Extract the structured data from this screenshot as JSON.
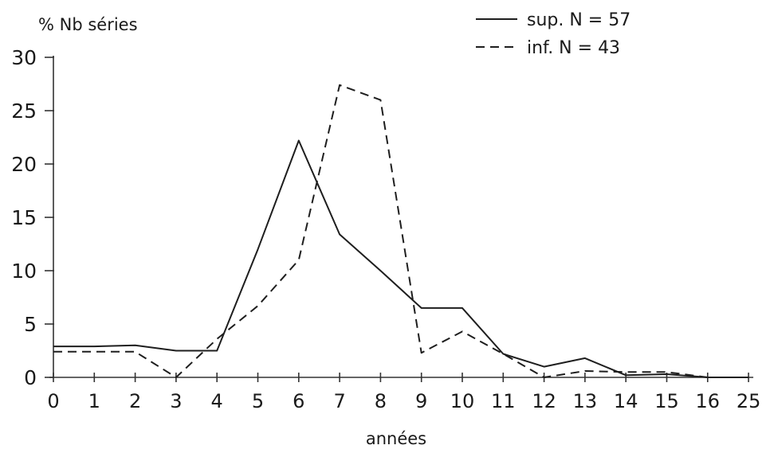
{
  "chart_data": {
    "type": "line",
    "title": "",
    "ylabel": "% Nb séries",
    "xlabel": "années",
    "categories": [
      "0",
      "1",
      "2",
      "3",
      "4",
      "5",
      "6",
      "7",
      "8",
      "9",
      "10",
      "11",
      "12",
      "13",
      "14",
      "15",
      "16",
      "25"
    ],
    "ylim": [
      0,
      30
    ],
    "yticks": [
      0,
      5,
      10,
      15,
      20,
      25,
      30
    ],
    "grid": false,
    "legend_position": "top-right",
    "series": [
      {
        "name": "sup. N = 57",
        "style": "solid",
        "values": [
          2.9,
          2.9,
          3.0,
          2.5,
          2.5,
          12.0,
          22.2,
          13.4,
          10.0,
          6.5,
          6.5,
          2.2,
          1.0,
          1.8,
          0.2,
          0.3,
          0.0,
          0.0
        ]
      },
      {
        "name": "inf. N = 43",
        "style": "dashed",
        "values": [
          2.4,
          2.4,
          2.4,
          0.0,
          3.6,
          6.7,
          11.0,
          27.4,
          26.0,
          2.3,
          4.3,
          2.2,
          0.0,
          0.6,
          0.5,
          0.5,
          0.0,
          0.0
        ]
      }
    ]
  },
  "colors": {
    "ink": "#1e1e1e",
    "background": "#ffffff"
  }
}
